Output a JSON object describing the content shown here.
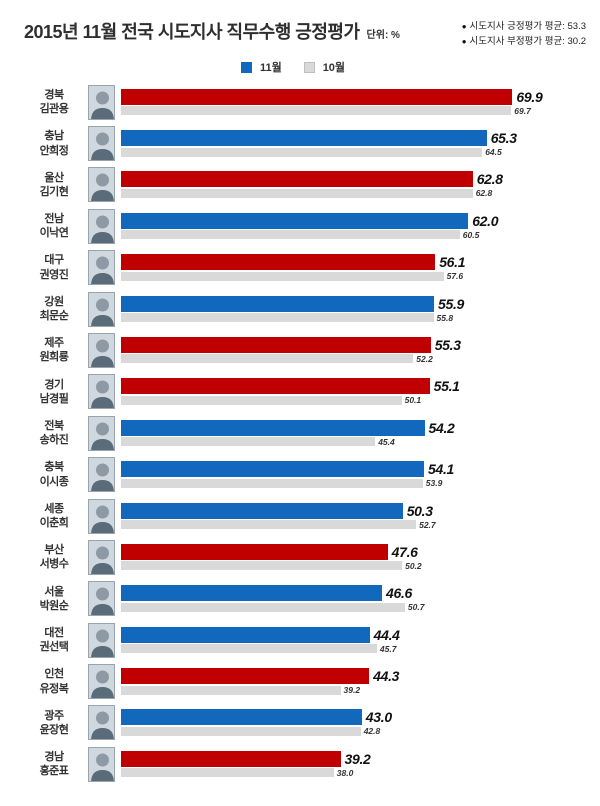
{
  "header": {
    "title": "2015년 11월 전국 시도지사 직무수행 긍정평가",
    "unit": "단위: %",
    "notes": [
      "시도지사 긍정평가 평균: 53.3",
      "시도지사 부정평가 평균: 30.2"
    ]
  },
  "legend": {
    "nov": "11월",
    "oct": "10월"
  },
  "colors": {
    "red": "#c00000",
    "blue": "#1268bd",
    "gray": "#d9d9d9",
    "title": "#2e2e2e"
  },
  "chart_data": {
    "type": "bar",
    "orientation": "horizontal",
    "title": "2015년 11월 전국 시도지사 직무수행 긍정평가",
    "unit": "%",
    "series_labels": [
      "11월",
      "10월"
    ],
    "xlim": [
      0,
      75
    ],
    "averages": {
      "positive": 53.3,
      "negative": 30.2
    },
    "rows": [
      {
        "region": "경북",
        "name": "김관용",
        "party_color": "red",
        "nov": 69.9,
        "oct": 69.7
      },
      {
        "region": "충남",
        "name": "안희정",
        "party_color": "blue",
        "nov": 65.3,
        "oct": 64.5
      },
      {
        "region": "울산",
        "name": "김기현",
        "party_color": "red",
        "nov": 62.8,
        "oct": 62.8
      },
      {
        "region": "전남",
        "name": "이낙연",
        "party_color": "blue",
        "nov": 62.0,
        "oct": 60.5
      },
      {
        "region": "대구",
        "name": "권영진",
        "party_color": "red",
        "nov": 56.1,
        "oct": 57.6
      },
      {
        "region": "강원",
        "name": "최문순",
        "party_color": "blue",
        "nov": 55.9,
        "oct": 55.8
      },
      {
        "region": "제주",
        "name": "원희룡",
        "party_color": "red",
        "nov": 55.3,
        "oct": 52.2
      },
      {
        "region": "경기",
        "name": "남경필",
        "party_color": "red",
        "nov": 55.1,
        "oct": 50.1
      },
      {
        "region": "전북",
        "name": "송하진",
        "party_color": "blue",
        "nov": 54.2,
        "oct": 45.4
      },
      {
        "region": "충북",
        "name": "이시종",
        "party_color": "blue",
        "nov": 54.1,
        "oct": 53.9
      },
      {
        "region": "세종",
        "name": "이춘희",
        "party_color": "blue",
        "nov": 50.3,
        "oct": 52.7
      },
      {
        "region": "부산",
        "name": "서병수",
        "party_color": "red",
        "nov": 47.6,
        "oct": 50.2
      },
      {
        "region": "서울",
        "name": "박원순",
        "party_color": "blue",
        "nov": 46.6,
        "oct": 50.7
      },
      {
        "region": "대전",
        "name": "권선택",
        "party_color": "blue",
        "nov": 44.4,
        "oct": 45.7
      },
      {
        "region": "인천",
        "name": "유정복",
        "party_color": "red",
        "nov": 44.3,
        "oct": 39.2
      },
      {
        "region": "광주",
        "name": "윤장현",
        "party_color": "blue",
        "nov": 43.0,
        "oct": 42.8
      },
      {
        "region": "경남",
        "name": "홍준표",
        "party_color": "red",
        "nov": 39.2,
        "oct": 38.0
      }
    ]
  }
}
